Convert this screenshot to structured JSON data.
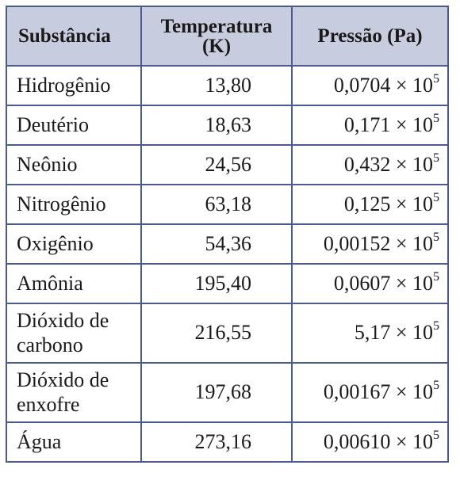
{
  "table": {
    "headers": {
      "substance": "Substância",
      "temperature": "Temperatura (K)",
      "pressure": "Pressão (Pa)"
    },
    "rows": [
      {
        "substance": "Hidrogênio",
        "temperature": "13,80",
        "pressure_mantissa": "0,0704",
        "pressure_times_base": "× 10",
        "pressure_exponent": "5"
      },
      {
        "substance": "Deutério",
        "temperature": "18,63",
        "pressure_mantissa": "0,171",
        "pressure_times_base": "× 10",
        "pressure_exponent": "5"
      },
      {
        "substance": "Neônio",
        "temperature": "24,56",
        "pressure_mantissa": "0,432",
        "pressure_times_base": "× 10",
        "pressure_exponent": "5"
      },
      {
        "substance": "Nitrogênio",
        "temperature": "63,18",
        "pressure_mantissa": "0,125",
        "pressure_times_base": "× 10",
        "pressure_exponent": "5"
      },
      {
        "substance": "Oxigênio",
        "temperature": "54,36",
        "pressure_mantissa": "0,00152",
        "pressure_times_base": "× 10",
        "pressure_exponent": "5"
      },
      {
        "substance": "Amônia",
        "temperature": "195,40",
        "pressure_mantissa": "0,0607",
        "pressure_times_base": "× 10",
        "pressure_exponent": "5"
      },
      {
        "substance": "Dióxido de carbono",
        "temperature": "216,55",
        "pressure_mantissa": "5,17",
        "pressure_times_base": "× 10",
        "pressure_exponent": "5"
      },
      {
        "substance": "Dióxido de enxofre",
        "temperature": "197,68",
        "pressure_mantissa": "0,00167",
        "pressure_times_base": "× 10",
        "pressure_exponent": "5"
      },
      {
        "substance": "Água",
        "temperature": "273,16",
        "pressure_mantissa": "0,00610",
        "pressure_times_base": "× 10",
        "pressure_exponent": "5"
      }
    ]
  },
  "colors": {
    "header_background": "#c8ccdf",
    "border": "#4a5a8a",
    "text": "#1a1a1a"
  }
}
